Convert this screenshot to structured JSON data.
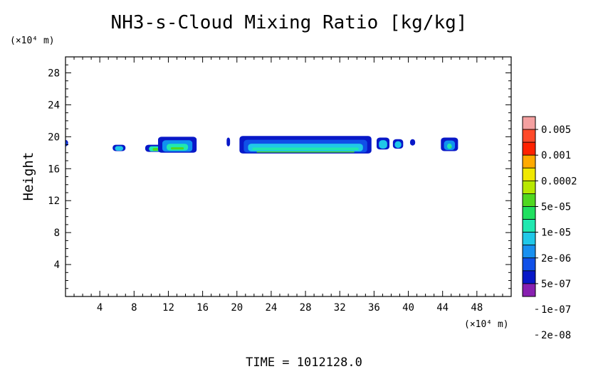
{
  "chart_data": {
    "type": "contour",
    "title": "NH3-s-Cloud Mixing Ratio [kg/kg]",
    "xlabel": "",
    "ylabel": "Height",
    "x_unit": "(×10⁴ m)",
    "y_unit": "(×10⁴ m)",
    "xlim": [
      0,
      52
    ],
    "ylim": [
      0,
      30
    ],
    "x_ticks": [
      4,
      8,
      12,
      16,
      20,
      24,
      28,
      32,
      36,
      40,
      44,
      48
    ],
    "y_ticks": [
      4,
      8,
      12,
      16,
      20,
      24,
      28
    ],
    "footer": "TIME  =  1012128.0",
    "legend": {
      "placement": "right",
      "levels": [
        "0.005",
        "0.001",
        "0.0002",
        "5e-05",
        "1e-05",
        "2e-06",
        "5e-07",
        "1e-07",
        "2e-08"
      ],
      "colors": [
        "#f4a0a0",
        "#ff4a2a",
        "#ff2200",
        "#ffaa00",
        "#f0e800",
        "#b8e800",
        "#50d820",
        "#20e060",
        "#20e8b0",
        "#20c8e8",
        "#1890f0",
        "#1050e8",
        "#0818c8",
        "#8820b0"
      ]
    },
    "cloud_patches": [
      {
        "x": [
          -0.3,
          0.3
        ],
        "y": [
          18.8,
          19.6
        ],
        "colors": [
          "#0818c8",
          "#1050e8"
        ]
      },
      {
        "x": [
          5.5,
          7.0
        ],
        "y": [
          18.2,
          19.0
        ],
        "colors": [
          "#0818c8",
          "#20c8e8"
        ]
      },
      {
        "x": [
          9.3,
          11.7
        ],
        "y": [
          18.1,
          19.0
        ],
        "colors": [
          "#0818c8",
          "#20e8b0",
          "#50d820"
        ]
      },
      {
        "x": [
          10.8,
          15.3
        ],
        "y": [
          18.0,
          20.0
        ],
        "colors": [
          "#0818c8",
          "#1090f0",
          "#20e8b0",
          "#50d820"
        ]
      },
      {
        "x": [
          18.8,
          19.2
        ],
        "y": [
          18.8,
          19.9
        ],
        "colors": [
          "#0818c8"
        ]
      },
      {
        "x": [
          20.3,
          35.7
        ],
        "y": [
          17.9,
          20.1
        ],
        "colors": [
          "#0818c8",
          "#1050e8",
          "#20c8e8",
          "#20e8b0",
          "#50d820"
        ]
      },
      {
        "x": [
          36.3,
          37.8
        ],
        "y": [
          18.4,
          19.9
        ],
        "colors": [
          "#0818c8",
          "#20c8e8"
        ]
      },
      {
        "x": [
          38.2,
          39.4
        ],
        "y": [
          18.5,
          19.7
        ],
        "colors": [
          "#0818c8",
          "#20c8e8"
        ]
      },
      {
        "x": [
          40.2,
          40.8
        ],
        "y": [
          18.9,
          19.7
        ],
        "colors": [
          "#0818c8"
        ]
      },
      {
        "x": [
          43.8,
          45.8
        ],
        "y": [
          18.2,
          19.9
        ],
        "colors": [
          "#0818c8",
          "#1090f0",
          "#20e8b0",
          "#50d820"
        ]
      }
    ]
  }
}
